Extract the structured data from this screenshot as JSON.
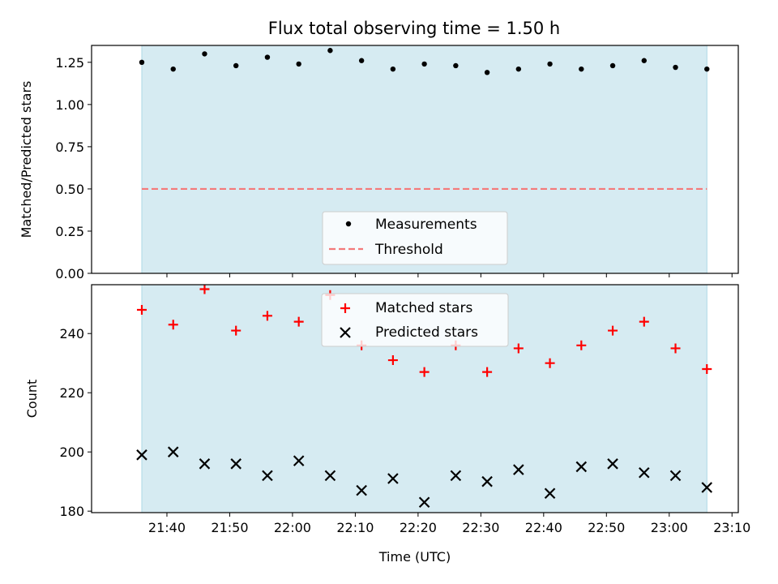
{
  "title": "Flux total observing time = 1.50 h",
  "colors": {
    "shade": "#add8e6",
    "measurements": "#000000",
    "threshold": "#f47a7a",
    "matched": "#ff0000",
    "predicted": "#000000"
  },
  "chart_data": [
    {
      "type": "scatter",
      "ylabel": "Matched/Predicted stars",
      "ylim": [
        0,
        1.35
      ],
      "yticks": [
        0,
        0.25,
        0.5,
        0.75,
        1.0,
        1.25
      ],
      "ytick_labels": [
        "0.00",
        "0.25",
        "0.50",
        "0.75",
        "1.00",
        "1.25"
      ],
      "x": [
        "21:36",
        "21:41",
        "21:46",
        "21:51",
        "21:56",
        "22:01",
        "22:06",
        "22:11",
        "22:16",
        "22:21",
        "22:26",
        "22:31",
        "22:36",
        "22:41",
        "22:46",
        "22:51",
        "22:56",
        "23:01",
        "23:06"
      ],
      "series": [
        {
          "name": "Measurements",
          "marker": "dot",
          "values": [
            1.25,
            1.21,
            1.3,
            1.23,
            1.28,
            1.24,
            1.32,
            1.26,
            1.21,
            1.24,
            1.23,
            1.19,
            1.21,
            1.24,
            1.21,
            1.23,
            1.26,
            1.22,
            1.21
          ]
        }
      ],
      "threshold": {
        "name": "Threshold",
        "value": 0.5,
        "style": "dashed"
      },
      "shaded_span": [
        "21:36",
        "23:06"
      ],
      "legend": "lower-center"
    },
    {
      "type": "scatter",
      "xlabel": "Time (UTC)",
      "ylabel": "Count",
      "ylim": [
        179.5,
        256.5
      ],
      "yticks": [
        180,
        200,
        220,
        240
      ],
      "ytick_labels": [
        "180",
        "200",
        "220",
        "240"
      ],
      "xticks": [
        "21:40",
        "21:50",
        "22:00",
        "22:10",
        "22:20",
        "22:30",
        "22:40",
        "22:50",
        "23:00",
        "23:10"
      ],
      "xlim": [
        "21:28",
        "23:11"
      ],
      "x": [
        "21:36",
        "21:41",
        "21:46",
        "21:51",
        "21:56",
        "22:01",
        "22:06",
        "22:11",
        "22:16",
        "22:21",
        "22:26",
        "22:31",
        "22:36",
        "22:41",
        "22:46",
        "22:51",
        "22:56",
        "23:01",
        "23:06"
      ],
      "series": [
        {
          "name": "Matched stars",
          "marker": "plus",
          "values": [
            248,
            243,
            255,
            241,
            246,
            244,
            253,
            236,
            231,
            227,
            236,
            227,
            235,
            230,
            236,
            241,
            244,
            235,
            228
          ]
        },
        {
          "name": "Predicted stars",
          "marker": "x",
          "values": [
            199,
            200,
            196,
            196,
            192,
            197,
            192,
            187,
            191,
            183,
            192,
            190,
            194,
            186,
            195,
            196,
            193,
            192,
            188
          ]
        }
      ],
      "shaded_span": [
        "21:36",
        "23:06"
      ],
      "legend": "upper-center"
    }
  ]
}
